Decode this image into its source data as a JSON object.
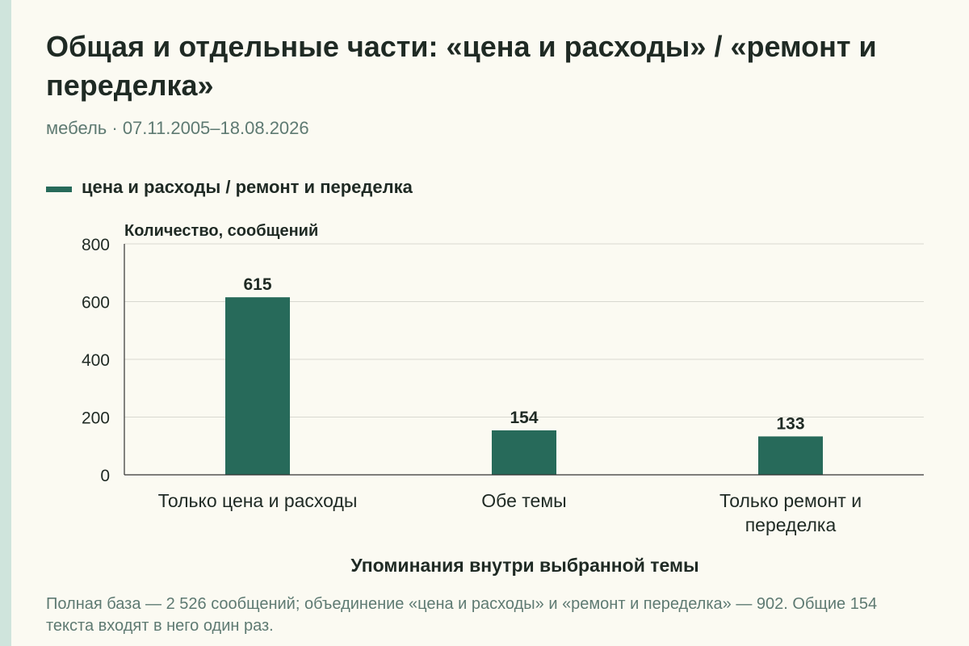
{
  "title": "Общая и отдельные части: «цена и расходы» / «ремонт и переделка»",
  "subtitle": "мебель · 07.11.2005–18.08.2026",
  "legend": {
    "label": "цена и расходы / ремонт и переделка"
  },
  "footnote": "Полная база — 2 526 сообщений; объединение «цена и расходы» и «ремонт и переделка» — 902. Общие 154 текста входят в него один раз.",
  "colors": {
    "bar": "#276a5a",
    "grid": "#d8d8d0",
    "axis": "#333333",
    "accent_stripe": "#cfe4dc"
  },
  "chart_data": {
    "type": "bar",
    "title": "Общая и отдельные части: «цена и расходы» / «ремонт и переделка»",
    "subtitle": "мебель · 07.11.2005–18.08.2026",
    "xlabel": "Упоминания внутри выбранной темы",
    "ylabel": "Количество, сообщений",
    "categories": [
      "Только цена и расходы",
      "Обе темы",
      "Только ремонт и переделка"
    ],
    "series": [
      {
        "name": "цена и расходы / ремонт и переделка",
        "values": [
          615,
          154,
          133
        ]
      }
    ],
    "ylim": [
      0,
      800
    ],
    "yticks": [
      0,
      200,
      400,
      600,
      800
    ],
    "grid": "horizontal",
    "legend_position": "top-left"
  }
}
